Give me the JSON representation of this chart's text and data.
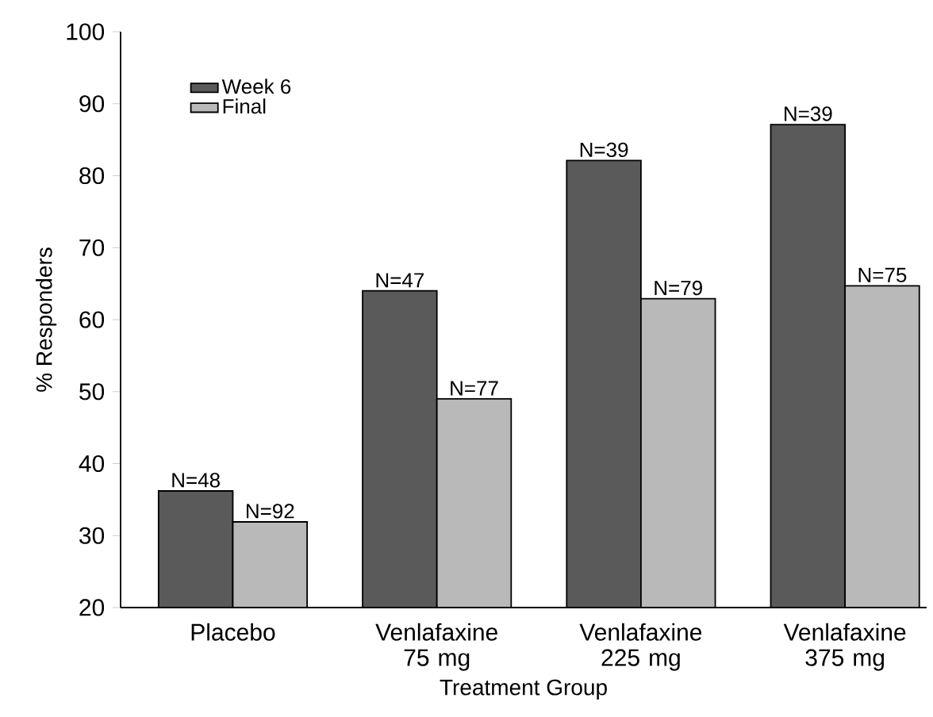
{
  "chart_data": {
    "type": "bar",
    "xlabel": "Treatment Group",
    "ylabel": "% Responders",
    "categories": [
      "Placebo",
      "Venlafaxine 75 mg",
      "Venlafaxine 225 mg",
      "Venlafaxine 375 mg"
    ],
    "series": [
      {
        "name": "Week 6",
        "color": "#5a5a5a",
        "values": [
          36.2,
          64,
          82.1,
          87.1
        ]
      },
      {
        "name": "Final",
        "color": "#b9b9b9",
        "values": [
          31.9,
          49,
          62.9,
          64.7
        ]
      }
    ],
    "annotations": [
      {
        "text": "N=48",
        "x": "Placebo",
        "y": 36.2
      },
      {
        "text": "N=47",
        "x": "Venlafaxine 75 mg",
        "y": 64
      },
      {
        "text": "N=39",
        "x": "Venlafaxine 225 mg",
        "y": 82.1
      },
      {
        "text": "N=39",
        "x": "Venlafaxine 375 mg",
        "y": 87.1
      },
      {
        "text": "N=92",
        "x": "Placebo",
        "y": 31.9
      },
      {
        "text": "N=77",
        "x": "Venlafaxine 75 mg",
        "y": 49
      },
      {
        "text": "N=79",
        "x": "Venlafaxine 225 mg",
        "y": 62.9
      },
      {
        "text": "N=75",
        "x": "Venlafaxine 375 mg",
        "y": 64.7
      }
    ],
    "ylim": [
      20,
      100
    ],
    "yticks": [
      20,
      30,
      40,
      50,
      60,
      70,
      80,
      90,
      100
    ],
    "legend": "top left"
  }
}
